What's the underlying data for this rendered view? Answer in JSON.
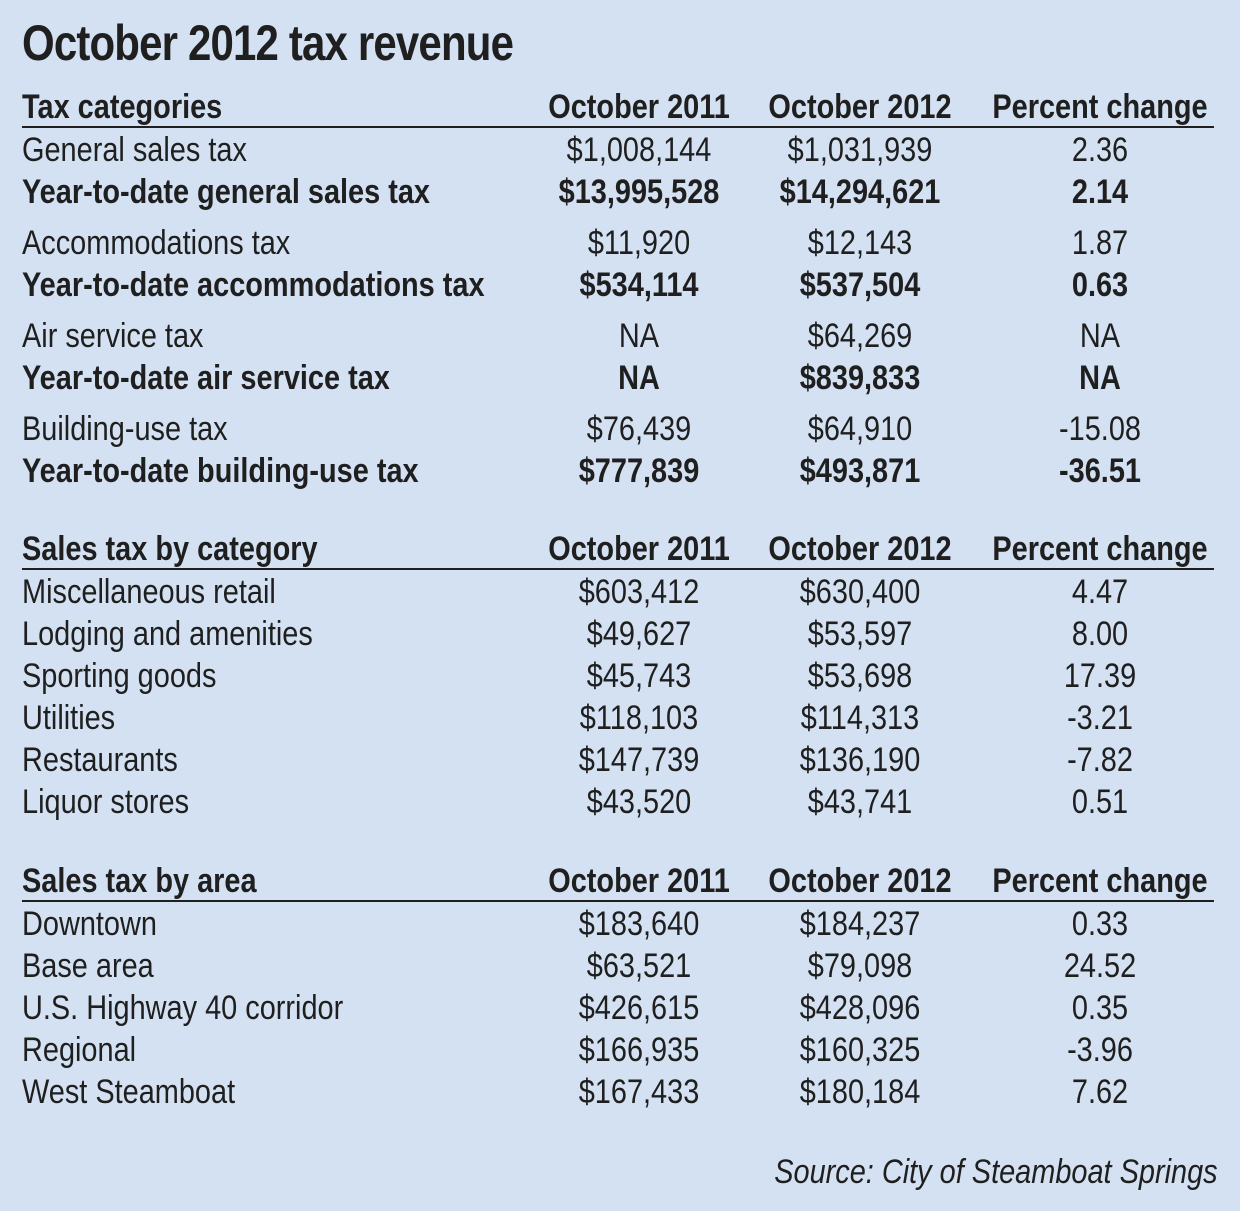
{
  "title": "October 2012 tax revenue",
  "sections": [
    {
      "header": [
        "Tax categories",
        "October 2011",
        "October 2012",
        "Percent change"
      ],
      "rows": [
        {
          "cells": [
            "General sales tax",
            "$1,008,144",
            "$1,031,939",
            "2.36"
          ],
          "bold": false,
          "gap": false
        },
        {
          "cells": [
            "Year-to-date general sales tax",
            "$13,995,528",
            "$14,294,621",
            "2.14"
          ],
          "bold": true,
          "gap": false
        },
        {
          "cells": [
            "Accommodations tax",
            "$11,920",
            "$12,143",
            "1.87"
          ],
          "bold": false,
          "gap": true
        },
        {
          "cells": [
            "Year-to-date accommodations tax",
            "$534,114",
            "$537,504",
            "0.63"
          ],
          "bold": true,
          "gap": false
        },
        {
          "cells": [
            "Air service tax",
            "NA",
            "$64,269",
            "NA"
          ],
          "bold": false,
          "gap": true
        },
        {
          "cells": [
            "Year-to-date air service tax",
            "NA",
            "$839,833",
            "NA"
          ],
          "bold": true,
          "gap": false
        },
        {
          "cells": [
            "Building-use tax",
            "$76,439",
            "$64,910",
            "-15.08"
          ],
          "bold": false,
          "gap": true
        },
        {
          "cells": [
            "Year-to-date building-use tax",
            "$777,839",
            "$493,871",
            "-36.51"
          ],
          "bold": true,
          "gap": false
        }
      ]
    },
    {
      "header": [
        "Sales tax by category",
        "October 2011",
        "October 2012",
        "Percent change"
      ],
      "rows": [
        {
          "cells": [
            "Miscellaneous retail",
            "$603,412",
            "$630,400",
            "4.47"
          ],
          "bold": false,
          "gap": false
        },
        {
          "cells": [
            "Lodging and amenities",
            "$49,627",
            "$53,597",
            "8.00"
          ],
          "bold": false,
          "gap": false
        },
        {
          "cells": [
            "Sporting goods",
            "$45,743",
            "$53,698",
            "17.39"
          ],
          "bold": false,
          "gap": false
        },
        {
          "cells": [
            "Utilities",
            "$118,103",
            "$114,313",
            "-3.21"
          ],
          "bold": false,
          "gap": false
        },
        {
          "cells": [
            "Restaurants",
            "$147,739",
            "$136,190",
            "-7.82"
          ],
          "bold": false,
          "gap": false
        },
        {
          "cells": [
            "Liquor stores",
            "$43,520",
            "$43,741",
            "0.51"
          ],
          "bold": false,
          "gap": false
        }
      ]
    },
    {
      "header": [
        "Sales tax by area",
        "October 2011",
        "October 2012",
        "Percent change"
      ],
      "rows": [
        {
          "cells": [
            "Downtown",
            "$183,640",
            "$184,237",
            "0.33"
          ],
          "bold": false,
          "gap": false
        },
        {
          "cells": [
            "Base area",
            "$63,521",
            "$79,098",
            "24.52"
          ],
          "bold": false,
          "gap": false
        },
        {
          "cells": [
            "U.S. Highway 40 corridor",
            "$426,615",
            "$428,096",
            "0.35"
          ],
          "bold": false,
          "gap": false
        },
        {
          "cells": [
            "Regional",
            "$166,935",
            "$160,325",
            "-3.96"
          ],
          "bold": false,
          "gap": false
        },
        {
          "cells": [
            "West Steamboat",
            "$167,433",
            "$180,184",
            "7.62"
          ],
          "bold": false,
          "gap": false
        }
      ]
    }
  ],
  "source": "Source: City of Steamboat Springs"
}
